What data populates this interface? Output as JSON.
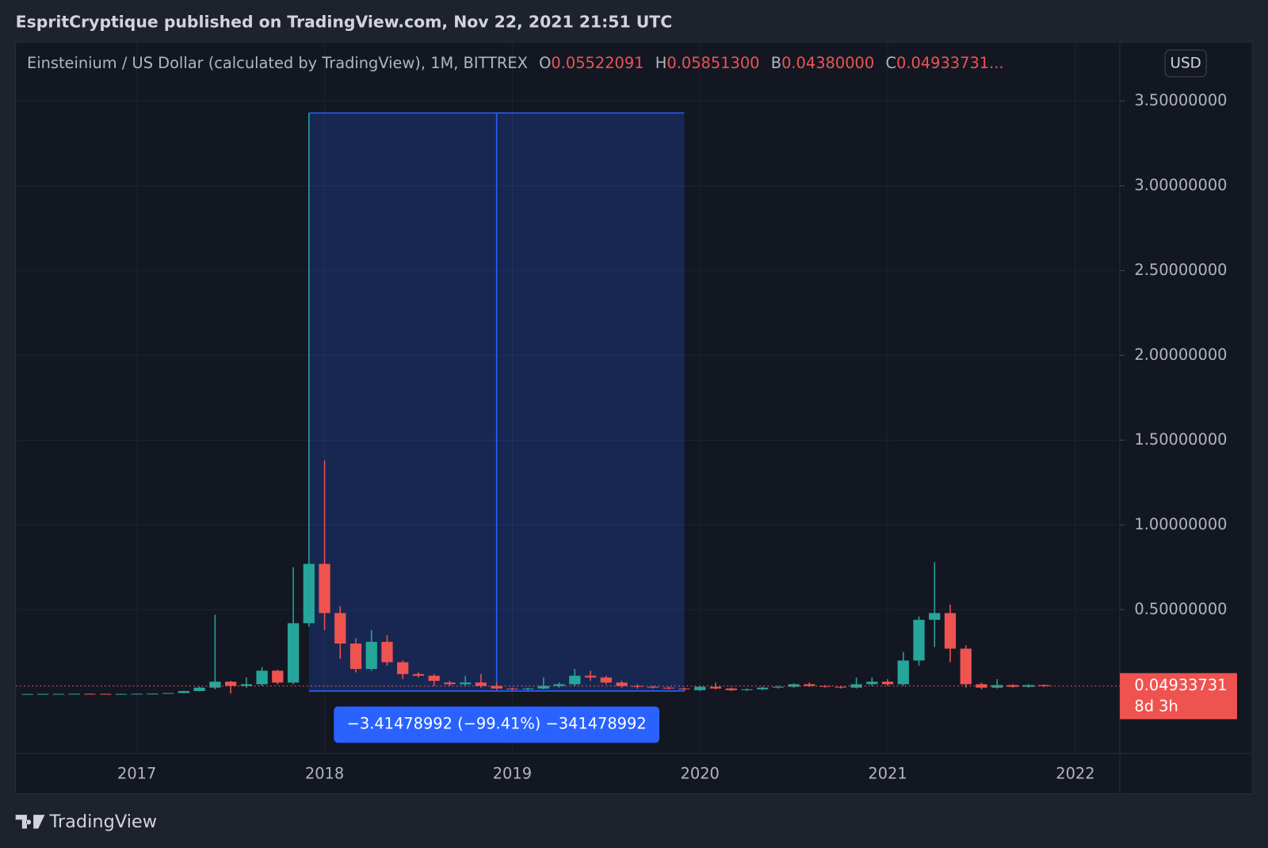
{
  "header": {
    "published": "EspritCryptique published on TradingView.com, Nov 22, 2021 21:51 UTC",
    "symbol": "Einsteinium / US Dollar (calculated by TradingView), 1M, BITTREX",
    "ohlc": [
      {
        "key": "O",
        "value": "0.05522091"
      },
      {
        "key": "H",
        "value": "0.05851300"
      },
      {
        "key": "B",
        "value": "0.04380000"
      },
      {
        "key": "C",
        "value": "0.04933731..."
      }
    ],
    "currency": "USD"
  },
  "footer": {
    "brand": "TradingView"
  },
  "chart_data": {
    "type": "candlestick",
    "up_color": "#26a69a",
    "down_color": "#ef5350",
    "x": [
      2016.4167,
      2016.5,
      2016.5833,
      2016.6667,
      2016.75,
      2016.8333,
      2016.9167,
      2017,
      2017.0833,
      2017.1667,
      2017.25,
      2017.3333,
      2017.4167,
      2017.5,
      2017.5833,
      2017.6667,
      2017.75,
      2017.8333,
      2017.9167,
      2018,
      2018.0833,
      2018.1667,
      2018.25,
      2018.3333,
      2018.4167,
      2018.5,
      2018.5833,
      2018.6667,
      2018.75,
      2018.8333,
      2018.9167,
      2019,
      2019.0833,
      2019.1667,
      2019.25,
      2019.3333,
      2019.4167,
      2019.5,
      2019.5833,
      2019.6667,
      2019.75,
      2019.8333,
      2019.9167,
      2020,
      2020.0833,
      2020.1667,
      2020.25,
      2020.3333,
      2020.4167,
      2020.5,
      2020.5833,
      2020.6667,
      2020.75,
      2020.8333,
      2020.9167,
      2021,
      2021.0833,
      2021.1667,
      2021.25,
      2021.3333,
      2021.4167,
      2021.5,
      2021.5833,
      2021.6667,
      2021.75,
      2021.8333
    ],
    "open": [
      0.002,
      0.0025,
      0.003,
      0.0035,
      0.004,
      0.0035,
      0.003,
      0.003,
      0.004,
      0.005,
      0.008,
      0.02,
      0.04,
      0.075,
      0.05,
      0.06,
      0.14,
      0.07,
      0.42,
      0.77,
      0.48,
      0.3,
      0.15,
      0.31,
      0.19,
      0.12,
      0.11,
      0.07,
      0.06,
      0.07,
      0.05,
      0.035,
      0.03,
      0.035,
      0.05,
      0.06,
      0.11,
      0.1,
      0.07,
      0.05,
      0.045,
      0.04,
      0.035,
      0.025,
      0.045,
      0.035,
      0.025,
      0.03,
      0.04,
      0.045,
      0.06,
      0.05,
      0.045,
      0.04,
      0.06,
      0.075,
      0.06,
      0.2,
      0.44,
      0.48,
      0.27,
      0.06,
      0.04,
      0.055,
      0.045,
      0.05522091
    ],
    "high": [
      0.003,
      0.0035,
      0.004,
      0.0045,
      0.005,
      0.0045,
      0.004,
      0.0045,
      0.006,
      0.009,
      0.022,
      0.045,
      0.47,
      0.08,
      0.1,
      0.16,
      0.145,
      0.75,
      3.43,
      1.38,
      0.52,
      0.33,
      0.38,
      0.35,
      0.2,
      0.13,
      0.12,
      0.08,
      0.11,
      0.12,
      0.07,
      0.04,
      0.04,
      0.1,
      0.07,
      0.15,
      0.14,
      0.11,
      0.08,
      0.06,
      0.05,
      0.045,
      0.04,
      0.05,
      0.07,
      0.04,
      0.035,
      0.045,
      0.05,
      0.065,
      0.07,
      0.055,
      0.05,
      0.1,
      0.1,
      0.09,
      0.25,
      0.46,
      0.78,
      0.53,
      0.29,
      0.07,
      0.09,
      0.06,
      0.06,
      0.058513
    ],
    "low": [
      0.0015,
      0.002,
      0.0025,
      0.003,
      0.003,
      0.0025,
      0.0025,
      0.0025,
      0.0035,
      0.0045,
      0.007,
      0.018,
      0.03,
      0.005,
      0.04,
      0.05,
      0.06,
      0.06,
      0.4,
      0.38,
      0.21,
      0.13,
      0.14,
      0.17,
      0.09,
      0.1,
      0.05,
      0.05,
      0.05,
      0.04,
      0.03,
      0.025,
      0.025,
      0.03,
      0.04,
      0.05,
      0.08,
      0.06,
      0.04,
      0.035,
      0.035,
      0.03,
      0.02,
      0.02,
      0.03,
      0.02,
      0.02,
      0.025,
      0.035,
      0.04,
      0.045,
      0.04,
      0.035,
      0.035,
      0.05,
      0.05,
      0.05,
      0.17,
      0.28,
      0.19,
      0.04,
      0.03,
      0.035,
      0.04,
      0.04,
      0.0438
    ],
    "close": [
      0.0025,
      0.003,
      0.0035,
      0.004,
      0.0035,
      0.003,
      0.003,
      0.004,
      0.005,
      0.008,
      0.02,
      0.04,
      0.075,
      0.05,
      0.06,
      0.14,
      0.07,
      0.42,
      0.77,
      0.48,
      0.3,
      0.15,
      0.31,
      0.19,
      0.12,
      0.11,
      0.08,
      0.06,
      0.07,
      0.05,
      0.035,
      0.03,
      0.035,
      0.05,
      0.06,
      0.11,
      0.1,
      0.07,
      0.05,
      0.045,
      0.04,
      0.035,
      0.03,
      0.045,
      0.035,
      0.025,
      0.03,
      0.04,
      0.045,
      0.06,
      0.05,
      0.045,
      0.04,
      0.06,
      0.075,
      0.06,
      0.2,
      0.44,
      0.48,
      0.27,
      0.06,
      0.04,
      0.055,
      0.045,
      0.055,
      0.04933731
    ],
    "xlim": [
      2016.354,
      2022.237
    ],
    "xticks": [
      2017,
      2018,
      2019,
      2020,
      2021,
      2022
    ],
    "ylim": [
      -0.348,
      3.848
    ],
    "yticks": [
      {
        "value": 0.5,
        "label": "0.50000000"
      },
      {
        "value": 1,
        "label": "1.00000000"
      },
      {
        "value": 1.5,
        "label": "1.50000000"
      },
      {
        "value": 2,
        "label": "2.00000000"
      },
      {
        "value": 2.5,
        "label": "2.50000000"
      },
      {
        "value": 3,
        "label": "3.00000000"
      },
      {
        "value": 3.5,
        "label": "3.50000000"
      }
    ],
    "grid": true,
    "last_price": {
      "label": "0.04933731",
      "countdown": "8d 3h",
      "color": "#ef5350"
    },
    "measure": {
      "x": [
        2017.9167,
        2019.9167
      ],
      "y": [
        0.02,
        3.43
      ],
      "label": "−3.41478992 (−99.41%) −341478992",
      "color": "#2962ff"
    }
  }
}
